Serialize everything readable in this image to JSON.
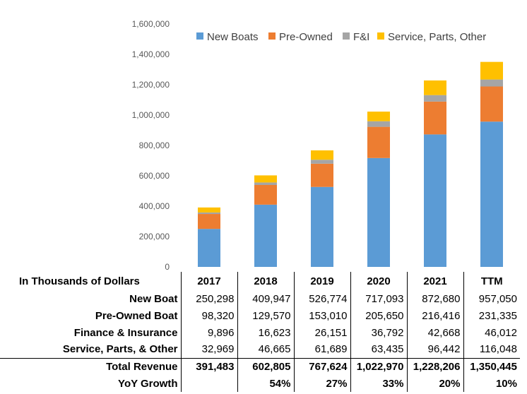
{
  "chart_data": {
    "type": "bar",
    "stacked": true,
    "categories": [
      "2017",
      "2018",
      "2019",
      "2020",
      "2021",
      "TTM"
    ],
    "series": [
      {
        "name": "New Boats",
        "color": "#5b9bd5",
        "values": [
          250298,
          409947,
          526774,
          717093,
          872680,
          957050
        ]
      },
      {
        "name": "Pre-Owned",
        "color": "#ed7d31",
        "values": [
          98320,
          129570,
          153010,
          205650,
          216416,
          231335
        ]
      },
      {
        "name": "F&I",
        "color": "#a5a5a5",
        "values": [
          9896,
          16623,
          26151,
          36792,
          42668,
          46012
        ]
      },
      {
        "name": "Service, Parts, Other",
        "color": "#ffc000",
        "values": [
          32969,
          46665,
          61689,
          63435,
          96442,
          116048
        ]
      }
    ],
    "ylim": [
      0,
      1600000
    ],
    "y_ticks": [
      "0",
      "200,000",
      "400,000",
      "600,000",
      "800,000",
      "1,000,000",
      "1,200,000",
      "1,400,000",
      "1,600,000"
    ],
    "legend_position": "top-right",
    "grid": false
  },
  "table": {
    "header_label": "In Thousands of Dollars",
    "columns": [
      "2017",
      "2018",
      "2019",
      "2020",
      "2021",
      "TTM"
    ],
    "rows": [
      {
        "label": "New Boat",
        "values": [
          "250,298",
          "409,947",
          "526,774",
          "717,093",
          "872,680",
          "957,050"
        ]
      },
      {
        "label": "Pre-Owned Boat",
        "values": [
          "98,320",
          "129,570",
          "153,010",
          "205,650",
          "216,416",
          "231,335"
        ]
      },
      {
        "label": "Finance & Insurance",
        "values": [
          "9,896",
          "16,623",
          "26,151",
          "36,792",
          "42,668",
          "46,012"
        ]
      },
      {
        "label": "Service, Parts, & Other",
        "values": [
          "32,969",
          "46,665",
          "61,689",
          "63,435",
          "96,442",
          "116,048"
        ]
      }
    ],
    "total": {
      "label": "Total Revenue",
      "values": [
        "391,483",
        "602,805",
        "767,624",
        "1,022,970",
        "1,228,206",
        "1,350,445"
      ]
    },
    "growth": {
      "label": "YoY Growth",
      "values": [
        "",
        "54%",
        "27%",
        "33%",
        "20%",
        "10%"
      ]
    }
  }
}
